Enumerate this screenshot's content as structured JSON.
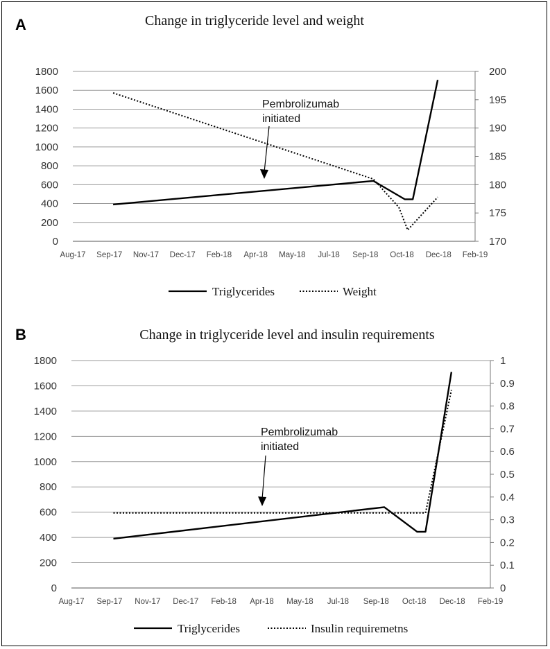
{
  "chart_data": [
    {
      "panel_label": "A",
      "type": "line",
      "title": "Change in triglyceride level and weight",
      "x_tick_labels": [
        "Aug-17",
        "Sep-17",
        "Nov-17",
        "Dec-17",
        "Feb-18",
        "Apr-18",
        "May-18",
        "Jul-18",
        "Sep-18",
        "Oct-18",
        "Dec-18",
        "Feb-19"
      ],
      "xlim": [
        "2017-08-01",
        "2019-02-01"
      ],
      "y_left": {
        "ylim": [
          0,
          1800
        ],
        "ticks": [
          0,
          200,
          400,
          600,
          800,
          1000,
          1200,
          1400,
          1600,
          1800
        ]
      },
      "y_right": {
        "ylim": [
          170,
          200
        ],
        "ticks": [
          170,
          175,
          180,
          185,
          190,
          195,
          200
        ]
      },
      "grid": "horizontal",
      "legend_position": "bottom",
      "series": [
        {
          "name": "Triglycerides",
          "axis": "left",
          "style": "solid",
          "points": [
            [
              "2017-09-25",
              390
            ],
            [
              "2018-09-15",
              640
            ],
            [
              "2018-10-28",
              445
            ],
            [
              "2018-11-08",
              445
            ],
            [
              "2018-12-12",
              1710
            ]
          ]
        },
        {
          "name": "Weight",
          "axis": "right",
          "style": "dotted",
          "points": [
            [
              "2017-09-25",
              196.2
            ],
            [
              "2018-09-15",
              181.0
            ],
            [
              "2018-10-20",
              176.0
            ],
            [
              "2018-11-01",
              172.0
            ],
            [
              "2018-12-12",
              177.8
            ]
          ]
        }
      ],
      "annotation": {
        "lines": [
          "Pembrolizumab",
          "initiated"
        ],
        "arrow_target": [
          "2018-04-01",
          600
        ]
      }
    },
    {
      "panel_label": "B",
      "type": "line",
      "title": "Change in triglyceride level and insulin requirements",
      "x_tick_labels": [
        "Aug-17",
        "Sep-17",
        "Nov-17",
        "Dec-17",
        "Feb-18",
        "Apr-18",
        "May-18",
        "Jul-18",
        "Sep-18",
        "Oct-18",
        "Dec-18",
        "Feb-19"
      ],
      "xlim": [
        "2017-08-01",
        "2019-02-01"
      ],
      "y_left": {
        "ylim": [
          0,
          1800
        ],
        "ticks": [
          0,
          200,
          400,
          600,
          800,
          1000,
          1200,
          1400,
          1600,
          1800
        ]
      },
      "y_right": {
        "ylim": [
          0,
          1
        ],
        "ticks": [
          0,
          0.1,
          0.2,
          0.3,
          0.4,
          0.5,
          0.6,
          0.7,
          0.8,
          0.9,
          1
        ]
      },
      "grid": "horizontal",
      "legend_position": "bottom",
      "series": [
        {
          "name": "Triglycerides",
          "axis": "left",
          "style": "solid",
          "points": [
            [
              "2017-09-25",
              390
            ],
            [
              "2018-09-15",
              640
            ],
            [
              "2018-10-28",
              445
            ],
            [
              "2018-11-08",
              445
            ],
            [
              "2018-12-12",
              1710
            ]
          ]
        },
        {
          "name": "Insulin requiremetns",
          "axis": "right",
          "style": "dotted",
          "points": [
            [
              "2017-09-25",
              0.33
            ],
            [
              "2018-11-08",
              0.33
            ],
            [
              "2018-12-12",
              0.87
            ]
          ]
        }
      ],
      "annotation": {
        "lines": [
          "Pembrolizumab",
          "initiated"
        ],
        "arrow_target": [
          "2018-04-01",
          600
        ]
      }
    }
  ]
}
